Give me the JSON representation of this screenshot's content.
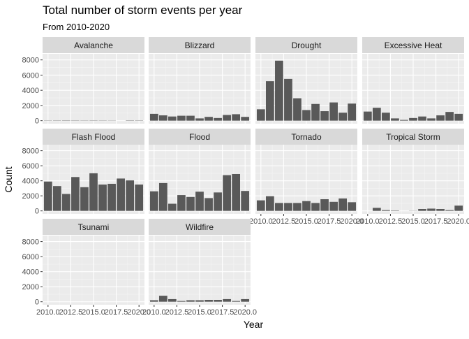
{
  "chart_data": {
    "type": "bar",
    "title": "Total number of storm events per year",
    "subtitle": "From 2010-2020",
    "xlabel": "Year",
    "ylabel": "Count",
    "x": [
      2010,
      2011,
      2012,
      2013,
      2014,
      2015,
      2016,
      2017,
      2018,
      2019,
      2020
    ],
    "xticks": [
      2010.0,
      2012.5,
      2015.0,
      2017.5,
      2020.0
    ],
    "xtick_labels": [
      "2010.0",
      "2012.5",
      "2015.0",
      "2017.5",
      "2020.0"
    ],
    "ylim": [
      0,
      8000
    ],
    "yticks": [
      0,
      2000,
      4000,
      6000,
      8000
    ],
    "ytick_labels": [
      "0",
      "2000",
      "4000",
      "6000",
      "8000"
    ],
    "grid": true,
    "facets": [
      {
        "name": "Avalanche",
        "values": [
          30,
          35,
          40,
          35,
          30,
          35,
          30,
          25,
          0,
          40,
          35
        ]
      },
      {
        "name": "Blizzard",
        "values": [
          900,
          700,
          550,
          650,
          650,
          300,
          500,
          350,
          750,
          850,
          500
        ]
      },
      {
        "name": "Drought",
        "values": [
          1500,
          5200,
          7900,
          5500,
          2950,
          1400,
          2200,
          1250,
          2400,
          1050,
          2250
        ]
      },
      {
        "name": "Excessive Heat",
        "values": [
          1200,
          1700,
          1050,
          300,
          100,
          350,
          550,
          300,
          700,
          1150,
          900
        ]
      },
      {
        "name": "Flash Flood",
        "values": [
          3900,
          3300,
          2250,
          4500,
          3150,
          5000,
          3500,
          3600,
          4300,
          4050,
          3500
        ]
      },
      {
        "name": "Flood",
        "values": [
          2600,
          3700,
          950,
          2100,
          1850,
          2550,
          1700,
          2450,
          4750,
          4900,
          2650
        ]
      },
      {
        "name": "Tornado",
        "values": [
          1400,
          1950,
          1050,
          1050,
          1050,
          1300,
          1050,
          1550,
          1200,
          1650,
          1150
        ]
      },
      {
        "name": "Tropical Storm",
        "values": [
          0,
          400,
          100,
          50,
          0,
          20,
          250,
          300,
          250,
          100,
          700
        ]
      },
      {
        "name": "Tsunami",
        "values": [
          0,
          0,
          0,
          0,
          0,
          0,
          0,
          0,
          0,
          0,
          0
        ]
      },
      {
        "name": "Wildfire",
        "values": [
          200,
          800,
          350,
          100,
          200,
          200,
          250,
          250,
          350,
          100,
          350
        ]
      }
    ]
  },
  "colors": {
    "panel_background": "#ebebeb",
    "strip_background": "#d9d9d9",
    "bar_fill": "#595959",
    "grid_major": "#ffffff",
    "text": "#1a1a1a",
    "axis_text": "#4d4d4d"
  }
}
